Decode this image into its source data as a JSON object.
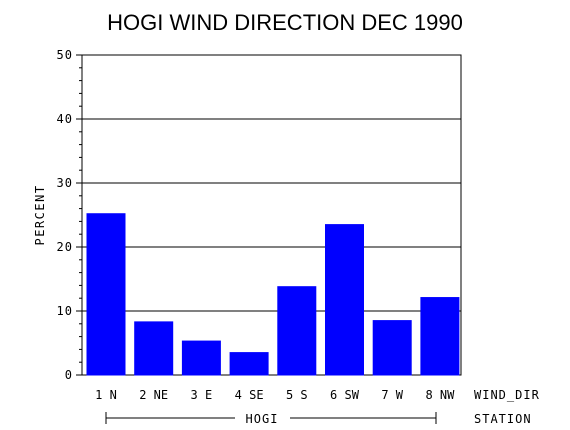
{
  "chart_data": {
    "type": "bar",
    "title": "HOGI WIND DIRECTION DEC 1990",
    "ylabel": "PERCENT",
    "xlabel": "WIND_DIR",
    "group_label": "STATION",
    "group_name": "HOGI",
    "categories": [
      "1 N",
      "2 NE",
      "3 E",
      "4 SE",
      "5 S",
      "6 SW",
      "7 W",
      "8 NW"
    ],
    "values": [
      25.2,
      8.3,
      5.3,
      3.5,
      13.8,
      23.5,
      8.5,
      12.1
    ],
    "ylim": [
      0,
      50
    ],
    "yticks": [
      "0",
      "10",
      "20",
      "30",
      "40",
      "50"
    ],
    "grid": true,
    "bar_color": "#0000ff"
  }
}
